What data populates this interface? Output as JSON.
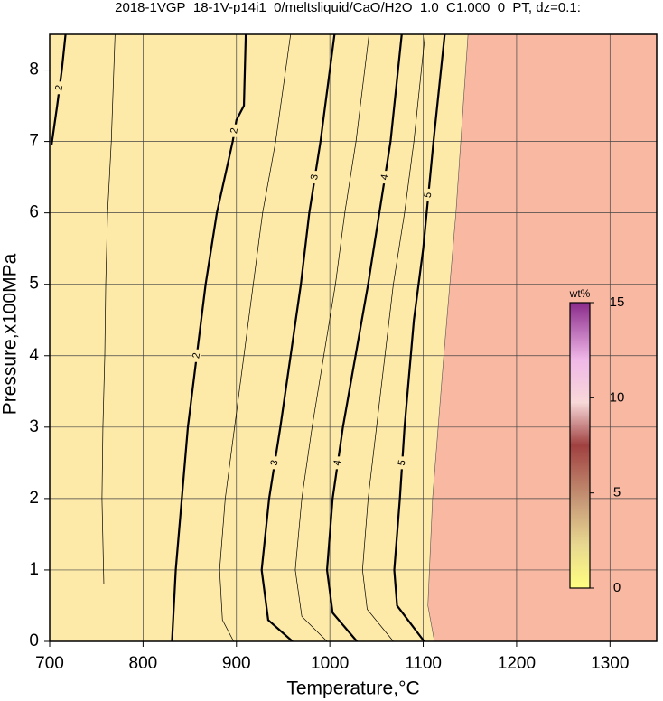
{
  "chart_data": {
    "type": "contour",
    "title": "2018-1VGP_18-1V-p14i1_0/meltsliquid/CaO/H2O_1.0_C1.000_0_PT, dz=0.1:",
    "xlabel": "Temperature,°C",
    "ylabel": "Pressure,x100MPa",
    "xlim": [
      700,
      1350
    ],
    "ylim": [
      0,
      8.5
    ],
    "xticks": [
      700,
      800,
      900,
      1000,
      1100,
      1200,
      1300
    ],
    "yticks": [
      0,
      1,
      2,
      3,
      4,
      5,
      6,
      7,
      8
    ],
    "grid": true,
    "contours": [
      {
        "level": 2,
        "labeled": true,
        "x": [
          831,
          832,
          835,
          848,
          867,
          879,
          896,
          900,
          908,
          910
        ],
        "y": [
          0,
          0.25,
          1,
          3,
          5,
          6,
          7,
          7.3,
          7.5,
          8.5
        ]
      },
      {
        "level": 2,
        "labeled": true,
        "x": [
          702,
          708,
          713,
          717
        ],
        "y": [
          6.95,
          7.5,
          8,
          8.5
        ]
      },
      {
        "level": 3,
        "labeled": true,
        "x": [
          960,
          934,
          927,
          935,
          947,
          969,
          978,
          990,
          1005
        ],
        "y": [
          0,
          0.3,
          1,
          2,
          3,
          5,
          6,
          7,
          8.5
        ]
      },
      {
        "level": 4,
        "labeled": true,
        "x": [
          1029,
          1003,
          997,
          1003,
          1014,
          1041,
          1053,
          1065,
          1077
        ],
        "y": [
          0,
          0.4,
          1,
          2,
          3,
          5,
          6,
          7,
          8.5
        ]
      },
      {
        "level": 5,
        "labeled": true,
        "x": [
          1101,
          1072,
          1069,
          1075,
          1080,
          1090,
          1100,
          1111,
          1123
        ],
        "y": [
          0,
          0.5,
          1,
          2,
          3,
          4.5,
          5.5,
          7,
          8.5
        ]
      },
      {
        "level": 1.5,
        "labeled": false,
        "x": [
          758,
          756,
          757,
          759,
          760,
          762,
          766,
          770
        ],
        "y": [
          0.8,
          2,
          3,
          4,
          5,
          6,
          7,
          8.5
        ]
      },
      {
        "level": 2.5,
        "labeled": false,
        "x": [
          897,
          885,
          882,
          888,
          898,
          918,
          928,
          942,
          958
        ],
        "y": [
          0,
          0.3,
          1,
          2,
          3,
          5,
          6,
          7,
          8.5
        ]
      },
      {
        "level": 3.5,
        "labeled": false,
        "x": [
          997,
          970,
          963,
          970,
          981,
          1006,
          1016,
          1028,
          1042
        ],
        "y": [
          0,
          0.35,
          1,
          2,
          3,
          5,
          6,
          7,
          8.5
        ]
      },
      {
        "level": 4.5,
        "labeled": false,
        "x": [
          1068,
          1040,
          1035,
          1041,
          1050,
          1068,
          1080,
          1090,
          1102
        ],
        "y": [
          0,
          0.45,
          1,
          2,
          3,
          5,
          6,
          7,
          8.5
        ]
      }
    ],
    "boundary": {
      "x": [
        1112,
        1105,
        1110,
        1122,
        1135,
        1148
      ],
      "y": [
        0,
        0.5,
        2,
        4,
        6,
        8.5
      ]
    },
    "colorbar": {
      "label": "wt%",
      "lim": [
        0,
        15
      ],
      "ticks": [
        0,
        5,
        10,
        15
      ]
    }
  }
}
